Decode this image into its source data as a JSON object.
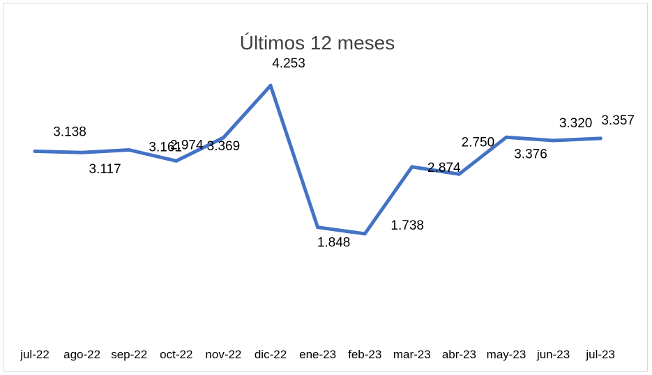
{
  "chart_data": {
    "type": "line",
    "title": "Últimos 12 meses",
    "xlabel": "",
    "ylabel": "",
    "categories": [
      "jul-22",
      "ago-22",
      "sep-22",
      "oct-22",
      "nov-22",
      "dic-22",
      "ene-23",
      "feb-23",
      "mar-23",
      "abr-23",
      "may-23",
      "jun-23",
      "jul-23"
    ],
    "series": [
      {
        "values": [
          3138,
          3117,
          3161,
          2974,
          3369,
          4253,
          1848,
          1738,
          2874,
          2750,
          3376,
          3320,
          3357
        ],
        "data_labels": [
          "3.138",
          "3.117",
          "3.161",
          "2.974",
          "3.369",
          "4.253",
          "1.848",
          "1.738",
          "2.874",
          "2.750",
          "3.376",
          "3.320",
          "3.357"
        ],
        "color": "#4472c4"
      }
    ],
    "grid": false,
    "legend": "none"
  }
}
